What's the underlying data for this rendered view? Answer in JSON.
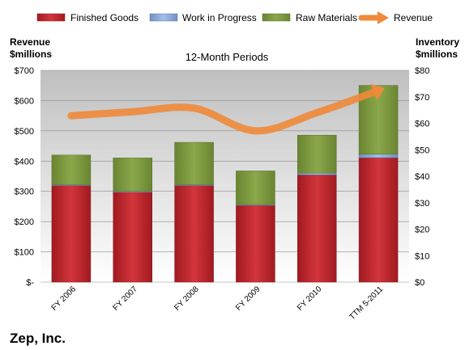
{
  "company": "Zep, Inc.",
  "colors": {
    "finished_goods": "#c0262c",
    "work_in_progress": "#7f9fd0",
    "raw_materials": "#7f9a3e",
    "revenue": "#ef8a3a",
    "plot_top": "#bfbfbf",
    "plot_bottom": "#ffffff"
  },
  "chart_data": {
    "type": "bar",
    "stacked": true,
    "title": "12-Month Periods",
    "categories": [
      "FY 2006",
      "FY 2007",
      "FY 2008",
      "FY 2009",
      "FY 2010",
      "TTM 5-2011"
    ],
    "left_axis": {
      "label_line1": "Revenue",
      "label_line2": "$millions",
      "ylim": [
        0,
        700
      ],
      "ticks": [
        0,
        100,
        200,
        300,
        400,
        500,
        600,
        700
      ],
      "tick_labels": [
        "$-",
        "$100",
        "$200",
        "$300",
        "$400",
        "$500",
        "$600",
        "$700"
      ]
    },
    "right_axis": {
      "label_line1": "Inventory",
      "label_line2": "$millions",
      "ylim": [
        0,
        80
      ],
      "ticks": [
        0,
        10,
        20,
        30,
        40,
        50,
        60,
        70,
        80
      ],
      "tick_labels": [
        "$0",
        "$10",
        "$20",
        "$30",
        "$40",
        "$50",
        "$60",
        "$70",
        "$80"
      ]
    },
    "series": [
      {
        "name": "Finished Goods",
        "kind": "bar",
        "axis": "right",
        "values": [
          36.5,
          34,
          36.5,
          29,
          40.5,
          47
        ]
      },
      {
        "name": "Work in Progress",
        "kind": "bar",
        "axis": "right",
        "values": [
          0.3,
          0.3,
          0.3,
          0.3,
          0.7,
          1.3
        ]
      },
      {
        "name": "Raw Materials",
        "kind": "bar",
        "axis": "right",
        "values": [
          11.2,
          12.6,
          16,
          12.7,
          14.3,
          26
        ]
      },
      {
        "name": "Revenue",
        "kind": "line",
        "axis": "left",
        "values": [
          550,
          563,
          575,
          500,
          560,
          633
        ]
      }
    ],
    "legend_position": "top",
    "grid": true
  }
}
